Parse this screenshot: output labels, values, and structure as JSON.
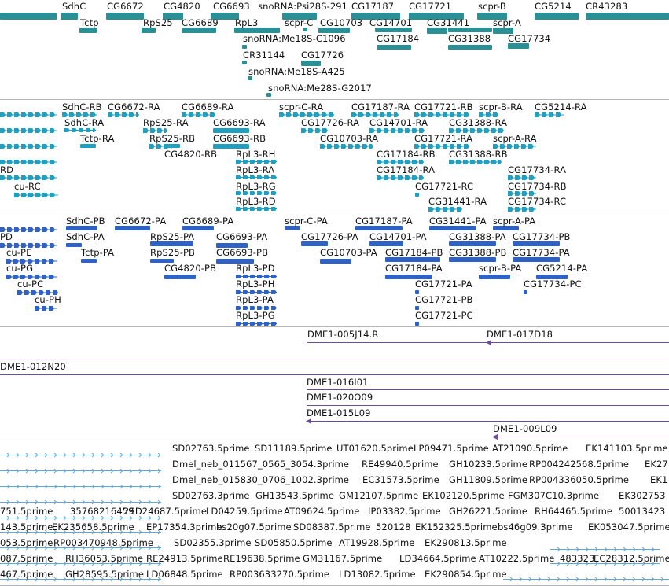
{
  "colors": {
    "gene": "#2b8f96",
    "transcript_ra": "#1fa0c0",
    "transcript_pa": "#2f62c8",
    "clone": "#6b4a9a",
    "est": "#5ea8d8",
    "separator": "#b5b5b5"
  },
  "tracks": [
    {
      "name": "genes",
      "features": [
        {
          "label": "SdhC"
        },
        {
          "label": "CG6672"
        },
        {
          "label": "CG4820"
        },
        {
          "label": "CG6693"
        },
        {
          "label": "snoRNA:Psi28S-291"
        },
        {
          "label": "CG17187"
        },
        {
          "label": "CG17721"
        },
        {
          "label": "scpr-B"
        },
        {
          "label": "CG5214"
        },
        {
          "label": "CR43283"
        },
        {
          "label": "Tctp"
        },
        {
          "label": "RpS25"
        },
        {
          "label": "CG6689"
        },
        {
          "label": "RpL3"
        },
        {
          "label": "scpr-C"
        },
        {
          "label": "CG10703"
        },
        {
          "label": "CG14701"
        },
        {
          "label": "CG31441"
        },
        {
          "label": "scpr-A"
        },
        {
          "label": "snoRNA:Me18S-C1096"
        },
        {
          "label": "CG17184"
        },
        {
          "label": "CG31388"
        },
        {
          "label": "CG17734"
        },
        {
          "label": "CR31144"
        },
        {
          "label": "CG17726"
        },
        {
          "label": "snoRNA:Me18S-A425"
        },
        {
          "label": "snoRNA:Me28S-G2017"
        }
      ]
    },
    {
      "name": "transcripts-ra",
      "features": [
        {
          "label": "SdhC-RB"
        },
        {
          "label": "CG6672-RA"
        },
        {
          "label": "CG6689-RA"
        },
        {
          "label": "scpr-C-RA"
        },
        {
          "label": "CG17187-RA"
        },
        {
          "label": "CG17721-RB"
        },
        {
          "label": "scpr-B-RA"
        },
        {
          "label": "CG5214-RA"
        },
        {
          "label": "SdhC-RA"
        },
        {
          "label": "RpS25-RA"
        },
        {
          "label": "CG6693-RA"
        },
        {
          "label": "CG17726-RA"
        },
        {
          "label": "CG14701-RA"
        },
        {
          "label": "CG31388-RA"
        },
        {
          "label": "Tctp-RA"
        },
        {
          "label": "RpS25-RB"
        },
        {
          "label": "CG6693-RB"
        },
        {
          "label": "CG10703-RA"
        },
        {
          "label": "CG17721-RA"
        },
        {
          "label": "scpr-A-RA"
        },
        {
          "label": "CG4820-RB"
        },
        {
          "label": "RpL3-RH"
        },
        {
          "label": "CG17184-RB"
        },
        {
          "label": "CG31388-RB"
        },
        {
          "label": "RD"
        },
        {
          "label": "RpL3-RA"
        },
        {
          "label": "CG17184-RA"
        },
        {
          "label": "CG17734-RA"
        },
        {
          "label": "cu-RC"
        },
        {
          "label": "RpL3-RG"
        },
        {
          "label": "CG17721-RC"
        },
        {
          "label": "CG17734-RB"
        },
        {
          "label": "RpL3-RD"
        },
        {
          "label": "CG31441-RA"
        },
        {
          "label": "CG17734-RC"
        }
      ]
    },
    {
      "name": "transcripts-pa",
      "features": [
        {
          "label": "SdhC-PB"
        },
        {
          "label": "CG6672-PA"
        },
        {
          "label": "CG6689-PA"
        },
        {
          "label": "scpr-C-PA"
        },
        {
          "label": "CG17187-PA"
        },
        {
          "label": "CG31441-PA"
        },
        {
          "label": "scpr-A-PA"
        },
        {
          "label": "PD"
        },
        {
          "label": "SdhC-PA"
        },
        {
          "label": "RpS25-PA"
        },
        {
          "label": "CG6693-PA"
        },
        {
          "label": "CG17726-PA"
        },
        {
          "label": "CG14701-PA"
        },
        {
          "label": "CG31388-PA"
        },
        {
          "label": "CG17734-PB"
        },
        {
          "label": "cu-PE"
        },
        {
          "label": "Tctp-PA"
        },
        {
          "label": "RpS25-PB"
        },
        {
          "label": "CG6693-PB"
        },
        {
          "label": "CG10703-PA"
        },
        {
          "label": "CG17184-PB"
        },
        {
          "label": "CG31388-PB"
        },
        {
          "label": "CG17734-PA"
        },
        {
          "label": "cu-PG"
        },
        {
          "label": "CG4820-PB"
        },
        {
          "label": "RpL3-PD"
        },
        {
          "label": "CG17184-PA"
        },
        {
          "label": "scpr-B-PA"
        },
        {
          "label": "CG5214-PA"
        },
        {
          "label": "cu-PC"
        },
        {
          "label": "RpL3-PH"
        },
        {
          "label": "CG17721-PA"
        },
        {
          "label": "CG17734-PC"
        },
        {
          "label": "cu-PH"
        },
        {
          "label": "RpL3-PA"
        },
        {
          "label": "CG17721-PB"
        },
        {
          "label": "RpL3-PG"
        },
        {
          "label": "CG17721-PC"
        }
      ]
    },
    {
      "name": "clones",
      "features": [
        {
          "label": "DME1-005J14.R"
        },
        {
          "label": "DME1-017D18"
        },
        {
          "label": "DME1-012N20"
        },
        {
          "label": "DME1-016I01"
        },
        {
          "label": "DME1-020O09"
        },
        {
          "label": "DME1-015L09"
        },
        {
          "label": "DME1-009L09"
        }
      ]
    },
    {
      "name": "ests",
      "features": [
        {
          "label": "SD02763.5prime"
        },
        {
          "label": "SD11189.5prime"
        },
        {
          "label": "UT01620.5prime"
        },
        {
          "label": "LP09471.5prime"
        },
        {
          "label": "AT21090.5prime"
        },
        {
          "label": "EK141103.5prime"
        },
        {
          "label": "Dmel_neb_011567_0565_3054.3prime"
        },
        {
          "label": "RE49940.5prime"
        },
        {
          "label": "GH10233.5prime"
        },
        {
          "label": "RP004242568.5prime"
        },
        {
          "label": "EK27"
        },
        {
          "label": "Dmel_neb_015830_0706_1002.3prime"
        },
        {
          "label": "EC31573.5prime"
        },
        {
          "label": "GH11809.5prime"
        },
        {
          "label": "RP004336050.5prime"
        },
        {
          "label": "EK1"
        },
        {
          "label": "SD02763.3prime"
        },
        {
          "label": "GH13543.5prime"
        },
        {
          "label": "GM12107.5prime"
        },
        {
          "label": "EK102120.5prime"
        },
        {
          "label": "FGM307C10.3prime"
        },
        {
          "label": "EK302753"
        },
        {
          "label": "751.5prime"
        },
        {
          "label": "35768216459"
        },
        {
          "label": "2SD24687.5prime"
        },
        {
          "label": "LD04259.5prime"
        },
        {
          "label": "AT09624.5prime"
        },
        {
          "label": "IP03382.5prime"
        },
        {
          "label": "GH26221.5prime"
        },
        {
          "label": "RH64465.5prime"
        },
        {
          "label": "50013423"
        },
        {
          "label": "143.5prime"
        },
        {
          "label": "EK235658.5prime"
        },
        {
          "label": "EP17354.3prime"
        },
        {
          "label": "bs20g07.5prime"
        },
        {
          "label": "SD08387.5prime"
        },
        {
          "label": "520128"
        },
        {
          "label": "EK152325.5prime"
        },
        {
          "label": "bs46g09.3prime"
        },
        {
          "label": "EK053047.5prime"
        },
        {
          "label": "053.5prime"
        },
        {
          "label": "RP003470948.5prime"
        },
        {
          "label": "SD02355.3prime"
        },
        {
          "label": "SD05850.5prime"
        },
        {
          "label": "AT19928.5prime"
        },
        {
          "label": "EK290813.5prime"
        },
        {
          "label": "087.5prime"
        },
        {
          "label": "RH36053.5prime"
        },
        {
          "label": "RE24913.5prime"
        },
        {
          "label": "RE19638.5prime"
        },
        {
          "label": "GM31167.5prime"
        },
        {
          "label": "LD34664.5prime"
        },
        {
          "label": "AT10222.5prime"
        },
        {
          "label": "483323"
        },
        {
          "label": "EC28312.5prime"
        },
        {
          "label": "467.5prime"
        },
        {
          "label": "GH28595.5prime"
        },
        {
          "label": "LD06848.5prime"
        },
        {
          "label": "RP003633270.5prime"
        },
        {
          "label": "LD13082.5prime"
        },
        {
          "label": "EK290854.5prime"
        }
      ]
    }
  ]
}
